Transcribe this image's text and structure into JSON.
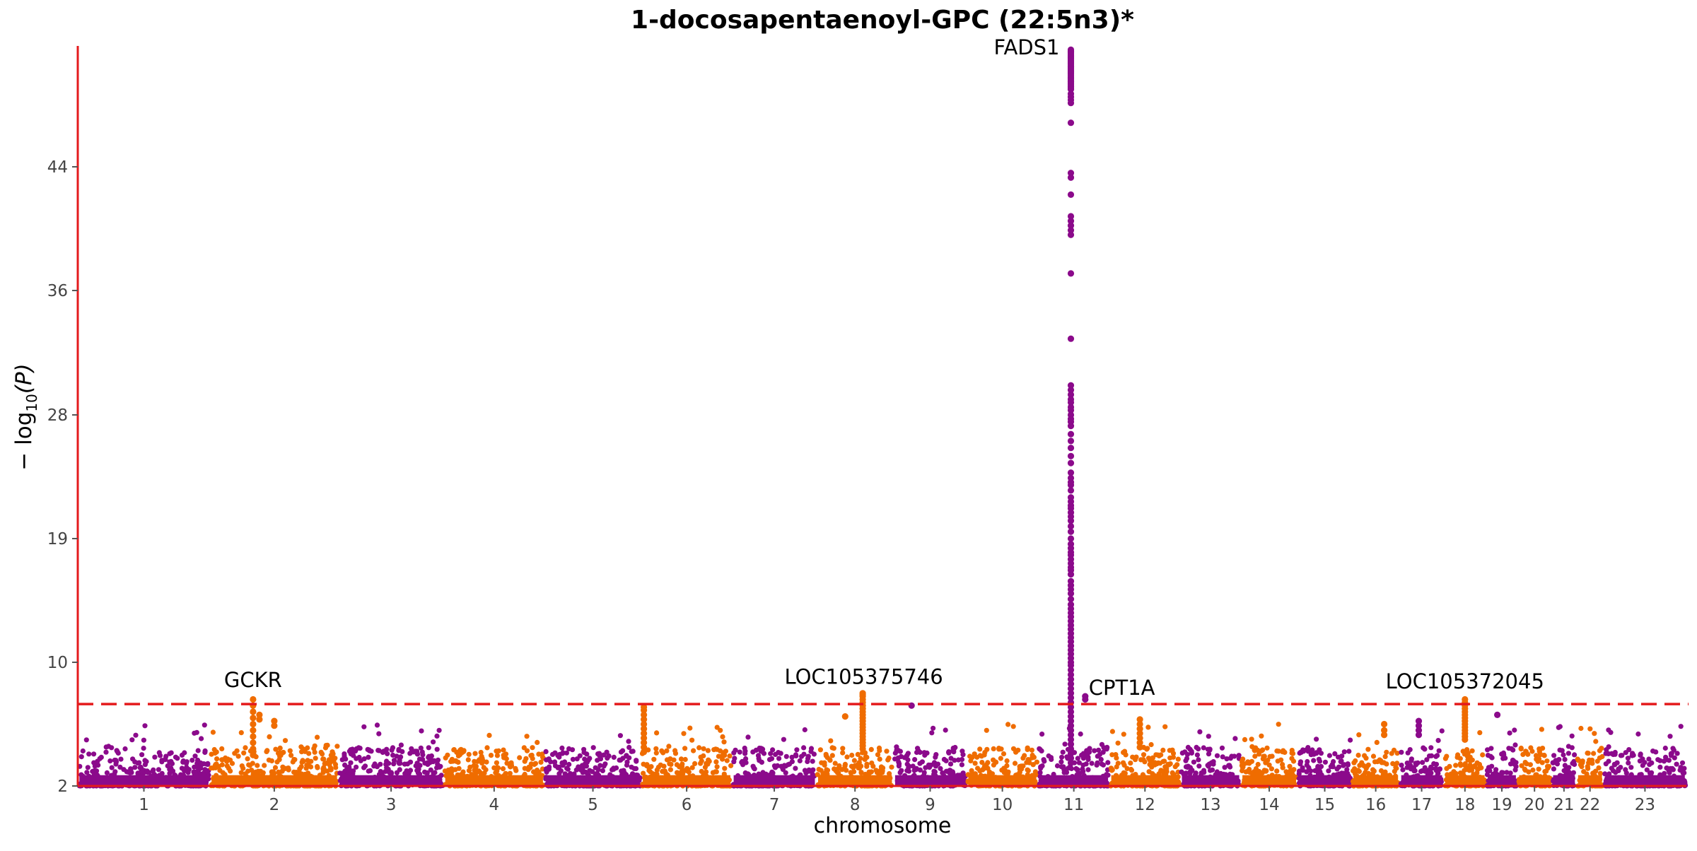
{
  "chart_data": {
    "type": "scatter",
    "subtype": "manhattan",
    "title": "1-docosapentaenoyl-GPC (22:5n3)*",
    "xlabel": "chromosome",
    "ylabel_main": "− log",
    "ylabel_sub": "10",
    "ylabel_tail": "(P)",
    "y_axis": {
      "ylim": [
        2,
        52
      ],
      "ticks": [
        2,
        10,
        19,
        28,
        36,
        44
      ],
      "scale": "piecewise-linear (axis compresses above the threshold line)"
    },
    "threshold": {
      "value": 7.3,
      "style": "dashed",
      "color": "#e41a1c"
    },
    "grid": false,
    "colors": {
      "purple": "#8b0a8b",
      "orange": "#ef6c00",
      "axis": "#e41a1c",
      "text": "#000000"
    },
    "chromosomes": [
      {
        "label": "1",
        "start": 0,
        "end": 249,
        "color": "purple"
      },
      {
        "label": "2",
        "start": 249,
        "end": 491,
        "color": "orange"
      },
      {
        "label": "3",
        "start": 491,
        "end": 689,
        "color": "purple"
      },
      {
        "label": "4",
        "start": 689,
        "end": 879,
        "color": "orange"
      },
      {
        "label": "5",
        "start": 879,
        "end": 1061,
        "color": "purple"
      },
      {
        "label": "6",
        "start": 1061,
        "end": 1232,
        "color": "orange"
      },
      {
        "label": "7",
        "start": 1232,
        "end": 1391,
        "color": "purple"
      },
      {
        "label": "8",
        "start": 1391,
        "end": 1536,
        "color": "orange"
      },
      {
        "label": "9",
        "start": 1536,
        "end": 1674,
        "color": "purple"
      },
      {
        "label": "10",
        "start": 1674,
        "end": 1808,
        "color": "orange"
      },
      {
        "label": "11",
        "start": 1808,
        "end": 1943,
        "color": "purple"
      },
      {
        "label": "12",
        "start": 1943,
        "end": 2076,
        "color": "orange"
      },
      {
        "label": "13",
        "start": 2076,
        "end": 2190,
        "color": "purple"
      },
      {
        "label": "14",
        "start": 2190,
        "end": 2297,
        "color": "orange"
      },
      {
        "label": "15",
        "start": 2297,
        "end": 2399,
        "color": "purple"
      },
      {
        "label": "16",
        "start": 2399,
        "end": 2489,
        "color": "orange"
      },
      {
        "label": "17",
        "start": 2489,
        "end": 2572,
        "color": "purple"
      },
      {
        "label": "18",
        "start": 2572,
        "end": 2652,
        "color": "orange"
      },
      {
        "label": "19",
        "start": 2652,
        "end": 2711,
        "color": "purple"
      },
      {
        "label": "20",
        "start": 2711,
        "end": 2775,
        "color": "orange"
      },
      {
        "label": "21",
        "start": 2775,
        "end": 2822,
        "color": "purple"
      },
      {
        "label": "22",
        "start": 2822,
        "end": 2873,
        "color": "orange"
      },
      {
        "label": "23",
        "start": 2873,
        "end": 3029,
        "color": "purple"
      }
    ],
    "gene_labels": [
      {
        "text": "FADS1",
        "x": 1870,
        "y": 51.4,
        "anchor": "end"
      },
      {
        "text": "GCKR",
        "x": 330,
        "y": 8.4,
        "anchor": "middle"
      },
      {
        "text": "LOC105375746",
        "x": 1480,
        "y": 8.6,
        "anchor": "middle"
      },
      {
        "text": "CPT1A",
        "x": 1893,
        "y": 7.9,
        "anchor": "start"
      },
      {
        "text": "LOC105372045",
        "x": 2612,
        "y": 8.3,
        "anchor": "middle"
      }
    ],
    "peaks": [
      {
        "chrom": "11",
        "x": 1870,
        "values": [
          51.7,
          51.6,
          51.5,
          51.4,
          51.3,
          51.2,
          51.1,
          51.0,
          50.9,
          50.8,
          50.7,
          50.6,
          50.5,
          50.4,
          50.3,
          50.2,
          50.1,
          50.0,
          49.9,
          49.8,
          49.7,
          49.6,
          49.5,
          49.4,
          49.3,
          49.2,
          49.1,
          48.8,
          48.6,
          48.4,
          48.2,
          46.9,
          43.6,
          43.3,
          42.2,
          40.8,
          40.5,
          40.2,
          39.9,
          39.6,
          37.1,
          32.9,
          29.9,
          29.6,
          29.3,
          29.0,
          28.8,
          28.5,
          28.3,
          28.0,
          27.7,
          27.5,
          27.2,
          26.6,
          26.1,
          25.6,
          25.0,
          24.5,
          23.8,
          23.4,
          23.1,
          22.9,
          22.5,
          22.0,
          21.7,
          21.4,
          21.2,
          20.9,
          20.6,
          20.3,
          19.9,
          19.5,
          19.0,
          18.6,
          18.3,
          18.0,
          17.8,
          17.5,
          17.2,
          16.9,
          16.7,
          16.4,
          15.9,
          15.6,
          15.3,
          15.0,
          14.6,
          14.2,
          13.9,
          13.6,
          13.3,
          13.0,
          12.7,
          12.4,
          12.1,
          11.8,
          11.5,
          11.2,
          10.9,
          10.6,
          10.3,
          10.0,
          9.8,
          9.5,
          9.2,
          8.9,
          8.6,
          8.3,
          8.0,
          7.7,
          7.4,
          7.1,
          6.8,
          6.5,
          6.2,
          5.9,
          5.6,
          5.3,
          5.0,
          4.7,
          4.4,
          4.1,
          3.8,
          3.5
        ]
      },
      {
        "chrom": "2",
        "x": 330,
        "values": [
          7.6,
          7.2,
          6.8,
          6.4,
          6.0,
          5.6,
          5.2,
          4.8,
          4.4,
          4.0
        ]
      },
      {
        "chrom": "2",
        "x": 342,
        "values": [
          6.6,
          6.3
        ]
      },
      {
        "chrom": "2",
        "x": 370,
        "values": [
          6.2,
          5.9
        ]
      },
      {
        "chrom": "6",
        "x": 1066,
        "values": [
          7.1,
          6.9,
          6.6,
          6.3,
          6.0,
          5.7,
          5.4,
          5.1,
          4.8,
          4.5,
          4.2
        ]
      },
      {
        "chrom": "8",
        "x": 1478,
        "values": [
          8.0,
          7.9,
          7.8,
          7.6,
          7.4,
          7.2,
          7.0,
          6.8,
          6.6,
          6.4,
          6.2,
          6.0,
          5.8,
          5.6,
          5.4,
          5.2,
          5.0,
          4.8,
          4.6,
          4.4
        ]
      },
      {
        "chrom": "8",
        "x": 1445,
        "values": [
          6.5
        ]
      },
      {
        "chrom": "9",
        "x": 1570,
        "values": [
          7.2
        ]
      },
      {
        "chrom": "11",
        "x": 1897,
        "values": [
          7.8,
          7.6
        ]
      },
      {
        "chrom": "12",
        "x": 2000,
        "values": [
          6.3,
          6.0,
          5.7,
          5.4,
          5.1,
          4.8,
          4.5
        ]
      },
      {
        "chrom": "18",
        "x": 2612,
        "values": [
          7.6,
          7.4,
          7.2,
          7.0,
          6.8,
          6.6,
          6.4,
          6.2,
          6.0,
          5.8,
          5.6,
          5.4,
          5.2,
          5.0
        ]
      },
      {
        "chrom": "19",
        "x": 2673,
        "values": [
          6.6
        ]
      },
      {
        "chrom": "17",
        "x": 2525,
        "values": [
          6.2,
          5.9,
          5.6,
          5.3
        ]
      },
      {
        "chrom": "16",
        "x": 2460,
        "values": [
          6.0,
          5.6,
          5.3
        ]
      }
    ],
    "background": {
      "description": "dense cloud of SNPs between -log10(P) 2 and ~6 across all chromosomes",
      "base_min": 2.0,
      "typical_max": 4.5,
      "max": 6.0
    }
  }
}
